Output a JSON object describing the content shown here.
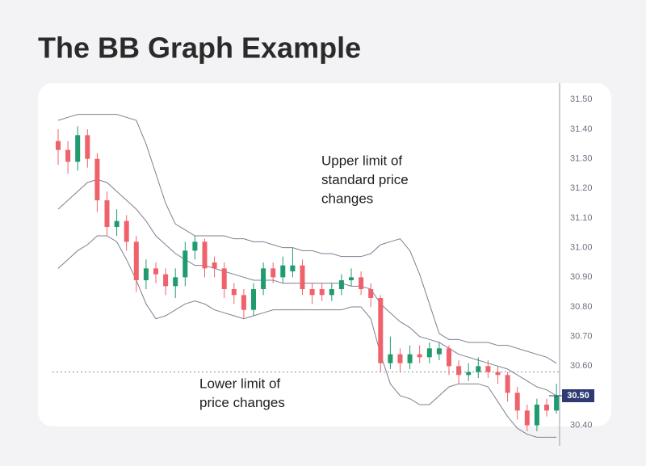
{
  "header": {
    "title": "The BB Graph Example"
  },
  "chart_data": {
    "type": "candlestick",
    "ylim": [
      30.35,
      31.55
    ],
    "yticks": [
      {
        "value": 31.5,
        "label": "31.50"
      },
      {
        "value": 31.4,
        "label": "31.40"
      },
      {
        "value": 31.3,
        "label": "31.30"
      },
      {
        "value": 31.2,
        "label": "31.20"
      },
      {
        "value": 31.1,
        "label": "31.10"
      },
      {
        "value": 31.0,
        "label": "31.00"
      },
      {
        "value": 30.9,
        "label": "30.90"
      },
      {
        "value": 30.8,
        "label": "30.80"
      },
      {
        "value": 30.7,
        "label": "30.70"
      },
      {
        "value": 30.6,
        "label": "30.60"
      },
      {
        "value": 30.5,
        "label": "30.50"
      },
      {
        "value": 30.4,
        "label": "30.40"
      }
    ],
    "up_color": "#1f9b6e",
    "down_color": "#f0626b",
    "open": [
      31.36,
      31.33,
      31.29,
      31.38,
      31.3,
      31.16,
      31.07,
      31.09,
      31.02,
      30.89,
      30.93,
      30.91,
      30.87,
      30.9,
      30.99,
      31.02,
      30.95,
      30.93,
      30.86,
      30.84,
      30.79,
      30.86,
      30.93,
      30.9,
      30.92,
      30.94,
      30.86,
      30.86,
      30.84,
      30.86,
      30.89,
      30.9,
      30.86,
      30.83,
      30.61,
      30.64,
      30.61,
      30.64,
      30.63,
      30.64,
      30.66,
      30.6,
      30.57,
      30.58,
      30.6,
      30.58,
      30.57,
      30.51,
      30.45,
      30.4,
      30.47,
      30.45
    ],
    "high": [
      31.4,
      31.36,
      31.41,
      31.4,
      31.32,
      31.19,
      31.13,
      31.11,
      31.04,
      30.96,
      30.95,
      30.93,
      30.93,
      31.02,
      31.04,
      31.03,
      30.97,
      30.95,
      30.88,
      30.86,
      30.88,
      30.95,
      30.95,
      30.97,
      31.0,
      30.96,
      30.88,
      30.88,
      30.88,
      30.91,
      30.93,
      30.92,
      30.88,
      30.84,
      30.7,
      30.66,
      30.67,
      30.67,
      30.68,
      30.68,
      30.67,
      30.62,
      30.61,
      30.63,
      30.62,
      30.6,
      30.58,
      30.53,
      30.47,
      30.49,
      30.49,
      30.54
    ],
    "low": [
      31.28,
      31.25,
      31.26,
      31.27,
      31.12,
      31.04,
      31.04,
      30.99,
      30.85,
      30.86,
      30.88,
      30.84,
      30.83,
      30.87,
      30.96,
      30.9,
      30.9,
      30.83,
      30.81,
      30.76,
      30.77,
      30.84,
      30.88,
      30.88,
      30.9,
      30.84,
      30.81,
      30.82,
      30.82,
      30.84,
      30.87,
      30.84,
      30.8,
      30.58,
      30.59,
      30.58,
      30.59,
      30.61,
      30.61,
      30.62,
      30.57,
      30.54,
      30.55,
      30.56,
      30.56,
      30.54,
      30.48,
      30.42,
      30.38,
      30.38,
      30.43,
      30.44
    ],
    "close": [
      31.33,
      31.29,
      31.38,
      31.3,
      31.16,
      31.07,
      31.09,
      31.02,
      30.89,
      30.93,
      30.91,
      30.87,
      30.9,
      30.99,
      31.02,
      30.93,
      30.93,
      30.86,
      30.84,
      30.79,
      30.86,
      30.93,
      30.9,
      30.94,
      30.94,
      30.86,
      30.84,
      30.84,
      30.86,
      30.89,
      30.9,
      30.86,
      30.83,
      30.61,
      30.64,
      30.61,
      30.64,
      30.63,
      30.66,
      30.66,
      30.6,
      30.57,
      30.58,
      30.6,
      30.58,
      30.57,
      30.51,
      30.45,
      30.4,
      30.47,
      30.45,
      30.5
    ],
    "bands": {
      "color": "#7d7f91",
      "upper": [
        31.43,
        31.44,
        31.45,
        31.45,
        31.45,
        31.45,
        31.45,
        31.44,
        31.43,
        31.35,
        31.25,
        31.15,
        31.08,
        31.06,
        31.04,
        31.04,
        31.04,
        31.04,
        31.03,
        31.03,
        31.02,
        31.02,
        31.01,
        31.0,
        31.0,
        30.99,
        30.99,
        30.98,
        30.98,
        30.97,
        30.97,
        30.97,
        30.98,
        31.01,
        31.02,
        31.03,
        30.99,
        30.91,
        30.81,
        30.71,
        30.69,
        30.69,
        30.68,
        30.68,
        30.68,
        30.67,
        30.67,
        30.66,
        30.65,
        30.64,
        30.63,
        30.61
      ],
      "middle": [
        31.13,
        31.16,
        31.19,
        31.22,
        31.23,
        31.22,
        31.19,
        31.16,
        31.13,
        31.09,
        31.04,
        31.01,
        30.98,
        30.96,
        30.94,
        30.94,
        30.93,
        30.92,
        30.91,
        30.9,
        30.89,
        30.89,
        30.89,
        30.88,
        30.88,
        30.88,
        30.88,
        30.88,
        30.88,
        30.88,
        30.87,
        30.87,
        30.86,
        30.81,
        30.78,
        30.75,
        30.73,
        30.7,
        30.69,
        30.68,
        30.66,
        30.64,
        30.63,
        30.62,
        30.61,
        30.6,
        30.59,
        30.57,
        30.55,
        30.53,
        30.52,
        30.5
      ],
      "lower": [
        30.93,
        30.96,
        30.99,
        31.01,
        31.04,
        31.04,
        31.02,
        30.96,
        30.89,
        30.81,
        30.76,
        30.77,
        30.79,
        30.81,
        30.82,
        30.81,
        30.79,
        30.78,
        30.77,
        30.76,
        30.77,
        30.78,
        30.79,
        30.79,
        30.79,
        30.79,
        30.79,
        30.79,
        30.79,
        30.79,
        30.8,
        30.8,
        30.76,
        30.64,
        30.54,
        30.5,
        30.49,
        30.47,
        30.47,
        30.5,
        30.53,
        30.54,
        30.54,
        30.54,
        30.53,
        30.48,
        30.43,
        30.39,
        30.37,
        30.36,
        30.36,
        30.36
      ]
    },
    "reference_line": 30.58,
    "current_price": {
      "value": 30.5,
      "label": "30.50"
    },
    "annotations": [
      {
        "lines": [
          "Upper limit of",
          "standard price",
          "changes"
        ]
      },
      {
        "lines": [
          "Lower limit of",
          "price changes"
        ]
      }
    ]
  }
}
